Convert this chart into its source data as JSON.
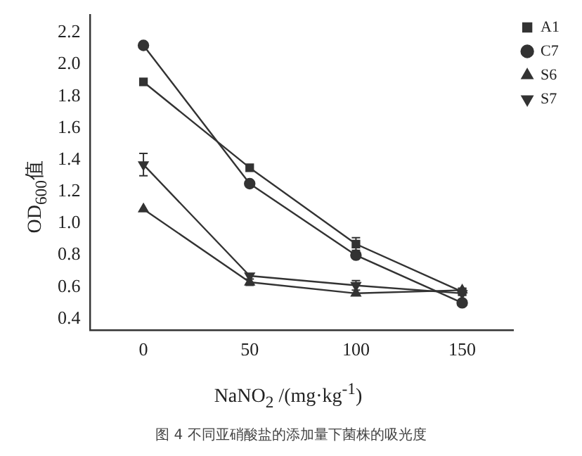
{
  "chart_data": {
    "type": "line",
    "xlabel": "NaNO$_{2}$ /(mg·kg$^{-1}$)",
    "ylabel": "OD$_{600}$值",
    "x": [
      0,
      50,
      100,
      150
    ],
    "series": [
      {
        "name": "A1",
        "color": "#333333",
        "marker": "square",
        "values": [
          1.89,
          1.35,
          0.87,
          0.57
        ],
        "errors": [
          null,
          null,
          0.04,
          null
        ]
      },
      {
        "name": "C7",
        "color": "#333333",
        "marker": "circle",
        "values": [
          2.12,
          1.25,
          0.8,
          0.5
        ],
        "errors": [
          null,
          null,
          null,
          null
        ]
      },
      {
        "name": "S6",
        "color": "#333333",
        "marker": "triangle",
        "values": [
          1.09,
          0.63,
          0.56,
          0.58
        ],
        "errors": [
          null,
          0.02,
          null,
          null
        ]
      },
      {
        "name": "S7",
        "color": "#333333",
        "marker": "triangle-down",
        "values": [
          1.37,
          0.67,
          0.61,
          0.56
        ],
        "errors": [
          0.07,
          null,
          0.03,
          null
        ]
      }
    ],
    "xlim": [
      -25,
      174
    ],
    "xticks": [
      0,
      50,
      100,
      150
    ],
    "ylim": [
      0.33,
      2.31
    ],
    "yticks": [
      0.4,
      0.6,
      0.8,
      {
        "value": 1,
        "label": "1.0"
      },
      1.2,
      1.4,
      1.6,
      1.8,
      {
        "value": 2,
        "label": "2.0"
      },
      2.2
    ],
    "grid": false,
    "legend": "top right",
    "line_style": "solid",
    "annotations": [
      "图 4  不同亚硝酸盐的添加量下菌株的吸光度"
    ]
  }
}
